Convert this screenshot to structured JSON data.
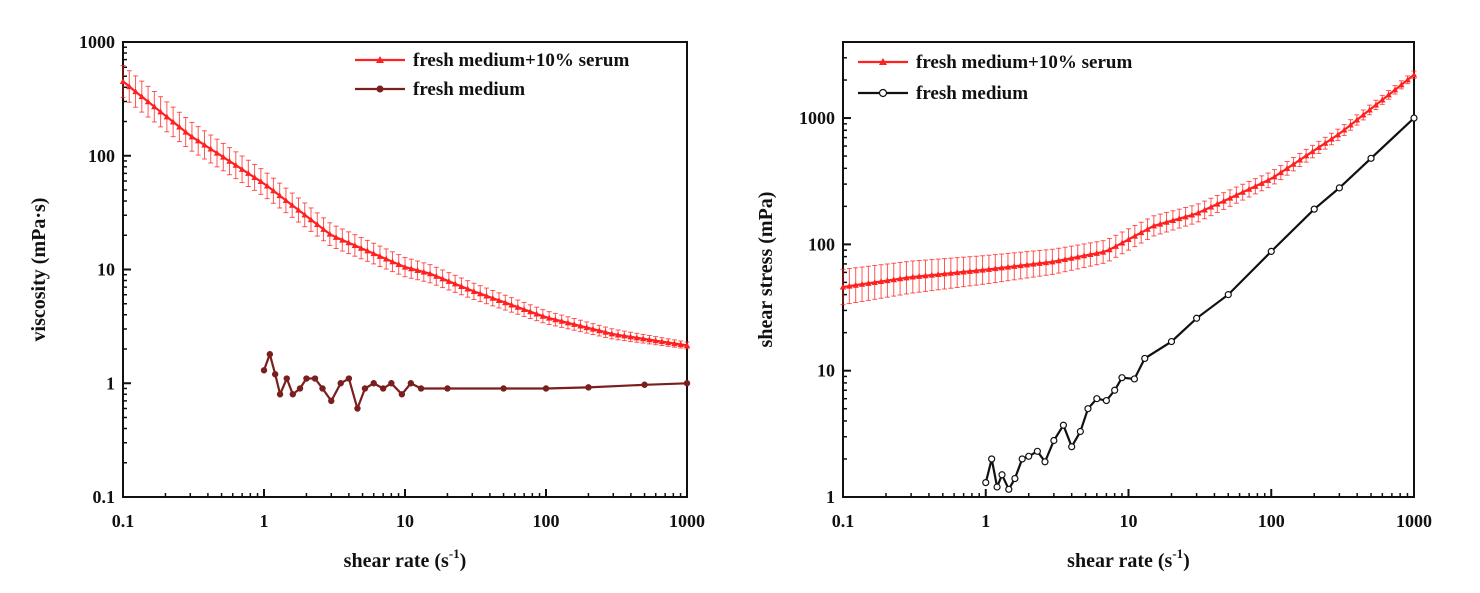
{
  "chart_data": [
    {
      "type": "line",
      "xlabel": "shear rate (s",
      "xlabel_sup": "-1",
      "xlabel_end": ")",
      "ylabel": "viscosity (mPa·s)",
      "xscale": "log",
      "yscale": "log",
      "xlim": [
        0.1,
        1000
      ],
      "ylim": [
        0.1,
        1000
      ],
      "x_ticks": [
        "0.1",
        "1",
        "10",
        "100",
        "1000"
      ],
      "y_ticks": [
        "0.1",
        "1",
        "10",
        "100",
        "1000"
      ],
      "legend_position": "top-right",
      "series": [
        {
          "name": "fresh medium+10% serum",
          "color": "#ff2020",
          "marker": "triangle",
          "error_bars": true,
          "points": [
            [
              0.1,
              450
            ],
            [
              0.3,
              150
            ],
            [
              1,
              57
            ],
            [
              3,
              20
            ],
            [
              10,
              10.5
            ],
            [
              15,
              9.2
            ],
            [
              30,
              6.5
            ],
            [
              100,
              3.8
            ],
            [
              300,
              2.7
            ],
            [
              1000,
              2.15
            ]
          ]
        },
        {
          "name": "fresh medium",
          "color": "#7b1e1e",
          "marker": "circle",
          "error_bars": false,
          "points": [
            [
              1.0,
              1.3
            ],
            [
              1.1,
              1.8
            ],
            [
              1.2,
              1.2
            ],
            [
              1.3,
              0.8
            ],
            [
              1.45,
              1.1
            ],
            [
              1.6,
              0.8
            ],
            [
              1.8,
              0.9
            ],
            [
              2.0,
              1.1
            ],
            [
              2.3,
              1.1
            ],
            [
              2.6,
              0.9
            ],
            [
              3.0,
              0.7
            ],
            [
              3.5,
              1.0
            ],
            [
              4.0,
              1.1
            ],
            [
              4.6,
              0.6
            ],
            [
              5.2,
              0.9
            ],
            [
              6.0,
              1.0
            ],
            [
              7.0,
              0.9
            ],
            [
              8.0,
              1.0
            ],
            [
              9.5,
              0.8
            ],
            [
              11,
              1.0
            ],
            [
              13,
              0.9
            ],
            [
              20,
              0.9
            ],
            [
              50,
              0.9
            ],
            [
              100,
              0.9
            ],
            [
              200,
              0.92
            ],
            [
              500,
              0.97
            ],
            [
              1000,
              1.0
            ]
          ]
        }
      ]
    },
    {
      "type": "line",
      "xlabel": "shear rate (s",
      "xlabel_sup": "-1",
      "xlabel_end": ")",
      "ylabel": "shear stress (mPa)",
      "xscale": "log",
      "yscale": "log",
      "xlim": [
        0.1,
        1000
      ],
      "ylim": [
        1,
        4000
      ],
      "x_ticks": [
        "0.1",
        "1",
        "10",
        "100",
        "1000"
      ],
      "y_ticks": [
        "1",
        "10",
        "100",
        "1000"
      ],
      "legend_position": "top-left",
      "series": [
        {
          "name": "fresh medium+10% serum",
          "color": "#ff2020",
          "marker": "triangle",
          "error_bars": true,
          "points": [
            [
              0.1,
              46
            ],
            [
              0.3,
              55
            ],
            [
              1,
              63
            ],
            [
              3,
              73
            ],
            [
              7,
              88
            ],
            [
              15,
              140
            ],
            [
              30,
              175
            ],
            [
              100,
              330
            ],
            [
              300,
              750
            ],
            [
              1000,
              2200
            ]
          ]
        },
        {
          "name": "fresh medium",
          "color": "#111111",
          "marker": "open-circle",
          "error_bars": false,
          "points": [
            [
              1.0,
              1.3
            ],
            [
              1.1,
              2.0
            ],
            [
              1.2,
              1.2
            ],
            [
              1.3,
              1.5
            ],
            [
              1.45,
              1.15
            ],
            [
              1.6,
              1.4
            ],
            [
              1.8,
              2.0
            ],
            [
              2.0,
              2.1
            ],
            [
              2.3,
              2.3
            ],
            [
              2.6,
              1.9
            ],
            [
              3.0,
              2.8
            ],
            [
              3.5,
              3.7
            ],
            [
              4.0,
              2.5
            ],
            [
              4.6,
              3.3
            ],
            [
              5.2,
              5.0
            ],
            [
              6.0,
              6.0
            ],
            [
              7.0,
              5.8
            ],
            [
              8.0,
              7.0
            ],
            [
              9.0,
              8.8
            ],
            [
              11,
              8.6
            ],
            [
              13,
              12.5
            ],
            [
              20,
              17
            ],
            [
              30,
              26
            ],
            [
              50,
              40
            ],
            [
              100,
              88
            ],
            [
              200,
              190
            ],
            [
              300,
              280
            ],
            [
              500,
              480
            ],
            [
              1000,
              1000
            ]
          ]
        }
      ]
    }
  ]
}
